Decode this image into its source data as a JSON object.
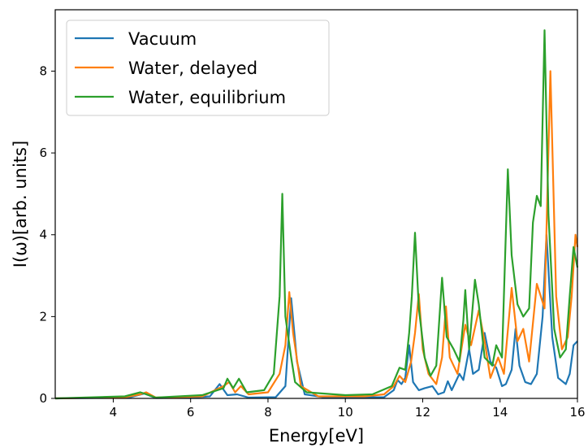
{
  "chart_data": {
    "type": "line",
    "title": "",
    "xlabel": "Energy[eV]",
    "ylabel": "I(ω)[arb. units]",
    "xlim": [
      2.5,
      16
    ],
    "ylim": [
      0,
      9.5
    ],
    "x_ticks": [
      4,
      6,
      8,
      10,
      12,
      14,
      16
    ],
    "y_ticks": [
      0,
      2,
      4,
      6,
      8
    ],
    "grid": false,
    "legend_position": "top-left",
    "series": [
      {
        "name": "Vacuum",
        "color": "#1f77b4",
        "points": [
          [
            2.5,
            0
          ],
          [
            4.4,
            0.02
          ],
          [
            4.8,
            0.12
          ],
          [
            5.1,
            0.01
          ],
          [
            6.0,
            0.02
          ],
          [
            6.5,
            0.05
          ],
          [
            6.75,
            0.35
          ],
          [
            6.95,
            0.08
          ],
          [
            7.2,
            0.1
          ],
          [
            7.5,
            0.02
          ],
          [
            8.2,
            0.03
          ],
          [
            8.45,
            0.3
          ],
          [
            8.6,
            2.45
          ],
          [
            8.75,
            0.9
          ],
          [
            8.95,
            0.1
          ],
          [
            9.5,
            0.02
          ],
          [
            11.0,
            0.03
          ],
          [
            11.25,
            0.2
          ],
          [
            11.35,
            0.45
          ],
          [
            11.45,
            0.35
          ],
          [
            11.55,
            0.5
          ],
          [
            11.65,
            1.3
          ],
          [
            11.75,
            0.4
          ],
          [
            11.9,
            0.2
          ],
          [
            12.05,
            0.25
          ],
          [
            12.25,
            0.3
          ],
          [
            12.4,
            0.1
          ],
          [
            12.55,
            0.15
          ],
          [
            12.65,
            0.42
          ],
          [
            12.75,
            0.2
          ],
          [
            12.95,
            0.6
          ],
          [
            13.05,
            0.45
          ],
          [
            13.2,
            1.2
          ],
          [
            13.3,
            0.6
          ],
          [
            13.45,
            0.7
          ],
          [
            13.6,
            1.6
          ],
          [
            13.75,
            0.9
          ],
          [
            13.9,
            0.75
          ],
          [
            14.05,
            0.3
          ],
          [
            14.15,
            0.35
          ],
          [
            14.3,
            0.7
          ],
          [
            14.4,
            1.7
          ],
          [
            14.5,
            0.8
          ],
          [
            14.65,
            0.4
          ],
          [
            14.8,
            0.35
          ],
          [
            14.95,
            0.6
          ],
          [
            15.1,
            2.0
          ],
          [
            15.2,
            4.0
          ],
          [
            15.35,
            1.5
          ],
          [
            15.5,
            0.5
          ],
          [
            15.7,
            0.35
          ],
          [
            15.8,
            0.6
          ],
          [
            15.9,
            1.3
          ],
          [
            16.0,
            1.4
          ]
        ]
      },
      {
        "name": "Water, delayed",
        "color": "#ff7f0e",
        "points": [
          [
            2.5,
            0
          ],
          [
            4.3,
            0.03
          ],
          [
            4.7,
            0.1
          ],
          [
            4.85,
            0.15
          ],
          [
            5.1,
            0.02
          ],
          [
            6.3,
            0.05
          ],
          [
            6.85,
            0.3
          ],
          [
            7.0,
            0.4
          ],
          [
            7.15,
            0.15
          ],
          [
            7.3,
            0.3
          ],
          [
            7.5,
            0.1
          ],
          [
            8.0,
            0.15
          ],
          [
            8.3,
            0.6
          ],
          [
            8.45,
            1.3
          ],
          [
            8.55,
            2.6
          ],
          [
            8.65,
            1.6
          ],
          [
            8.85,
            0.3
          ],
          [
            9.3,
            0.05
          ],
          [
            10.5,
            0.05
          ],
          [
            11.0,
            0.1
          ],
          [
            11.25,
            0.3
          ],
          [
            11.4,
            0.55
          ],
          [
            11.55,
            0.4
          ],
          [
            11.7,
            0.9
          ],
          [
            11.8,
            1.6
          ],
          [
            11.9,
            2.55
          ],
          [
            12.0,
            1.2
          ],
          [
            12.15,
            0.6
          ],
          [
            12.35,
            0.35
          ],
          [
            12.5,
            1.0
          ],
          [
            12.6,
            2.25
          ],
          [
            12.7,
            1.0
          ],
          [
            12.9,
            0.6
          ],
          [
            13.1,
            1.8
          ],
          [
            13.25,
            1.3
          ],
          [
            13.45,
            2.15
          ],
          [
            13.6,
            1.4
          ],
          [
            13.75,
            0.5
          ],
          [
            13.95,
            1.0
          ],
          [
            14.1,
            0.6
          ],
          [
            14.3,
            2.7
          ],
          [
            14.45,
            1.4
          ],
          [
            14.6,
            1.7
          ],
          [
            14.75,
            0.9
          ],
          [
            14.95,
            2.8
          ],
          [
            15.05,
            2.5
          ],
          [
            15.15,
            2.2
          ],
          [
            15.3,
            8.0
          ],
          [
            15.45,
            2.5
          ],
          [
            15.6,
            1.2
          ],
          [
            15.75,
            1.5
          ],
          [
            15.85,
            2.5
          ],
          [
            15.95,
            4.0
          ],
          [
            16.0,
            3.7
          ]
        ]
      },
      {
        "name": "Water, equilibrium",
        "color": "#2ca02c",
        "points": [
          [
            2.5,
            0
          ],
          [
            4.3,
            0.05
          ],
          [
            4.7,
            0.15
          ],
          [
            4.8,
            0.12
          ],
          [
            5.1,
            0.02
          ],
          [
            6.3,
            0.08
          ],
          [
            6.85,
            0.25
          ],
          [
            6.95,
            0.48
          ],
          [
            7.1,
            0.25
          ],
          [
            7.25,
            0.48
          ],
          [
            7.45,
            0.15
          ],
          [
            7.9,
            0.2
          ],
          [
            8.15,
            0.6
          ],
          [
            8.3,
            2.5
          ],
          [
            8.37,
            5.0
          ],
          [
            8.45,
            2.0
          ],
          [
            8.6,
            1.0
          ],
          [
            8.7,
            0.4
          ],
          [
            9.0,
            0.15
          ],
          [
            10.0,
            0.08
          ],
          [
            10.7,
            0.1
          ],
          [
            11.2,
            0.3
          ],
          [
            11.4,
            0.75
          ],
          [
            11.55,
            0.7
          ],
          [
            11.65,
            1.6
          ],
          [
            11.72,
            2.5
          ],
          [
            11.8,
            4.05
          ],
          [
            11.9,
            2.2
          ],
          [
            12.05,
            1.0
          ],
          [
            12.2,
            0.55
          ],
          [
            12.35,
            0.8
          ],
          [
            12.5,
            2.95
          ],
          [
            12.62,
            1.5
          ],
          [
            12.8,
            1.2
          ],
          [
            12.95,
            0.9
          ],
          [
            13.05,
            1.9
          ],
          [
            13.1,
            2.65
          ],
          [
            13.2,
            1.2
          ],
          [
            13.35,
            2.9
          ],
          [
            13.45,
            2.3
          ],
          [
            13.6,
            1.0
          ],
          [
            13.8,
            0.8
          ],
          [
            13.9,
            1.3
          ],
          [
            14.05,
            1.0
          ],
          [
            14.2,
            5.6
          ],
          [
            14.3,
            3.5
          ],
          [
            14.45,
            2.3
          ],
          [
            14.6,
            2.0
          ],
          [
            14.75,
            2.2
          ],
          [
            14.85,
            4.3
          ],
          [
            14.95,
            4.95
          ],
          [
            15.05,
            4.7
          ],
          [
            15.15,
            9.0
          ],
          [
            15.25,
            4.5
          ],
          [
            15.4,
            1.7
          ],
          [
            15.55,
            1.0
          ],
          [
            15.7,
            1.2
          ],
          [
            15.8,
            2.5
          ],
          [
            15.9,
            3.7
          ],
          [
            16.0,
            3.2
          ]
        ]
      }
    ]
  }
}
